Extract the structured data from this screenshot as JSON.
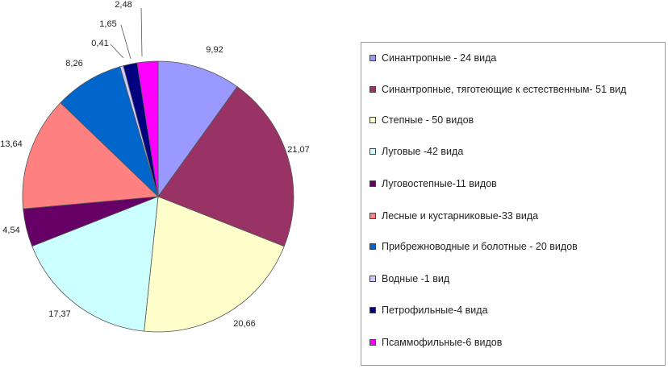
{
  "chart_data": {
    "type": "pie",
    "title": "",
    "legend_position": "right",
    "slices": [
      {
        "label": "Синантропные - 24 вида",
        "value": 9.92,
        "value_label": "9,92",
        "color": "#9999ff"
      },
      {
        "label": "Синантропные, тяготеющие к естественным- 51 вид",
        "value": 21.07,
        "value_label": "21,07",
        "color": "#993366"
      },
      {
        "label": "Степные - 50 видов",
        "value": 20.66,
        "value_label": "20,66",
        "color": "#ffffcc"
      },
      {
        "label": "Луговые -42 вида",
        "value": 17.37,
        "value_label": "17,37",
        "color": "#ccffff"
      },
      {
        "label": "Луговостепные-11 видов",
        "value": 4.54,
        "value_label": "4,54",
        "color": "#660066"
      },
      {
        "label": "Лесные и кустарниковые-33 вида",
        "value": 13.64,
        "value_label": "13,64",
        "color": "#ff8080"
      },
      {
        "label": "Прибрежноводные и болотные - 20 видов",
        "value": 8.26,
        "value_label": "8,26",
        "color": "#0066cc"
      },
      {
        "label": "Водные -1 вид",
        "value": 0.41,
        "value_label": "0,41",
        "color": "#ccccff"
      },
      {
        "label": "Петрофильные-4 вида",
        "value": 1.65,
        "value_label": "1,65",
        "color": "#000080"
      },
      {
        "label": "Псаммофильные-6 видов",
        "value": 2.48,
        "value_label": "2,48",
        "color": "#ff00ff"
      }
    ]
  }
}
